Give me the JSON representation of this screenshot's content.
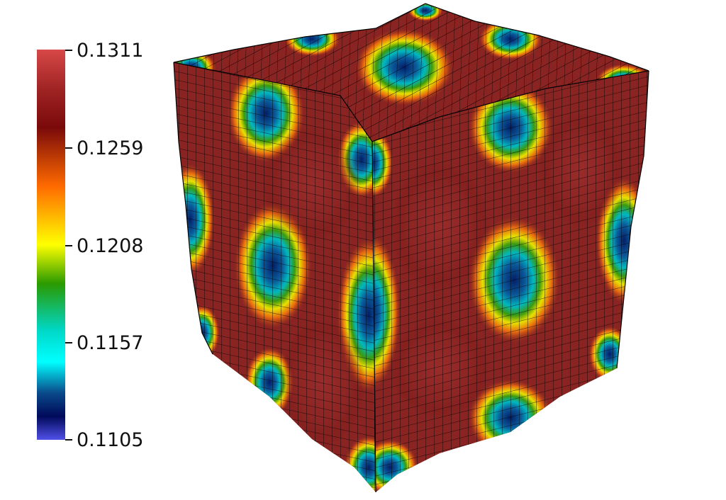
{
  "colorbar": {
    "ticks": [
      "0.1311",
      "0.1259",
      "0.1208",
      "0.1157",
      "0.1105"
    ],
    "stops": [
      {
        "offset": 0.0,
        "color": "#d84848"
      },
      {
        "offset": 0.1,
        "color": "#a02424"
      },
      {
        "offset": 0.2,
        "color": "#7a0a0a"
      },
      {
        "offset": 0.35,
        "color": "#ff6a00"
      },
      {
        "offset": 0.5,
        "color": "#ffff00"
      },
      {
        "offset": 0.6,
        "color": "#2a9a00"
      },
      {
        "offset": 0.72,
        "color": "#00d8c8"
      },
      {
        "offset": 0.8,
        "color": "#00ffff"
      },
      {
        "offset": 0.88,
        "color": "#0a4a8a"
      },
      {
        "offset": 0.94,
        "color": "#000a5a"
      },
      {
        "offset": 1.0,
        "color": "#5050e8"
      }
    ]
  },
  "colors": {
    "base": "#8a2422",
    "ridge": "#5a0808",
    "ring_orange": "#e86a10",
    "ring_yellow": "#f0e800",
    "ring_green": "#3a9a10",
    "ring_cyan": "#00c0c8",
    "core_blue": "#062870",
    "grid": "#000000"
  }
}
